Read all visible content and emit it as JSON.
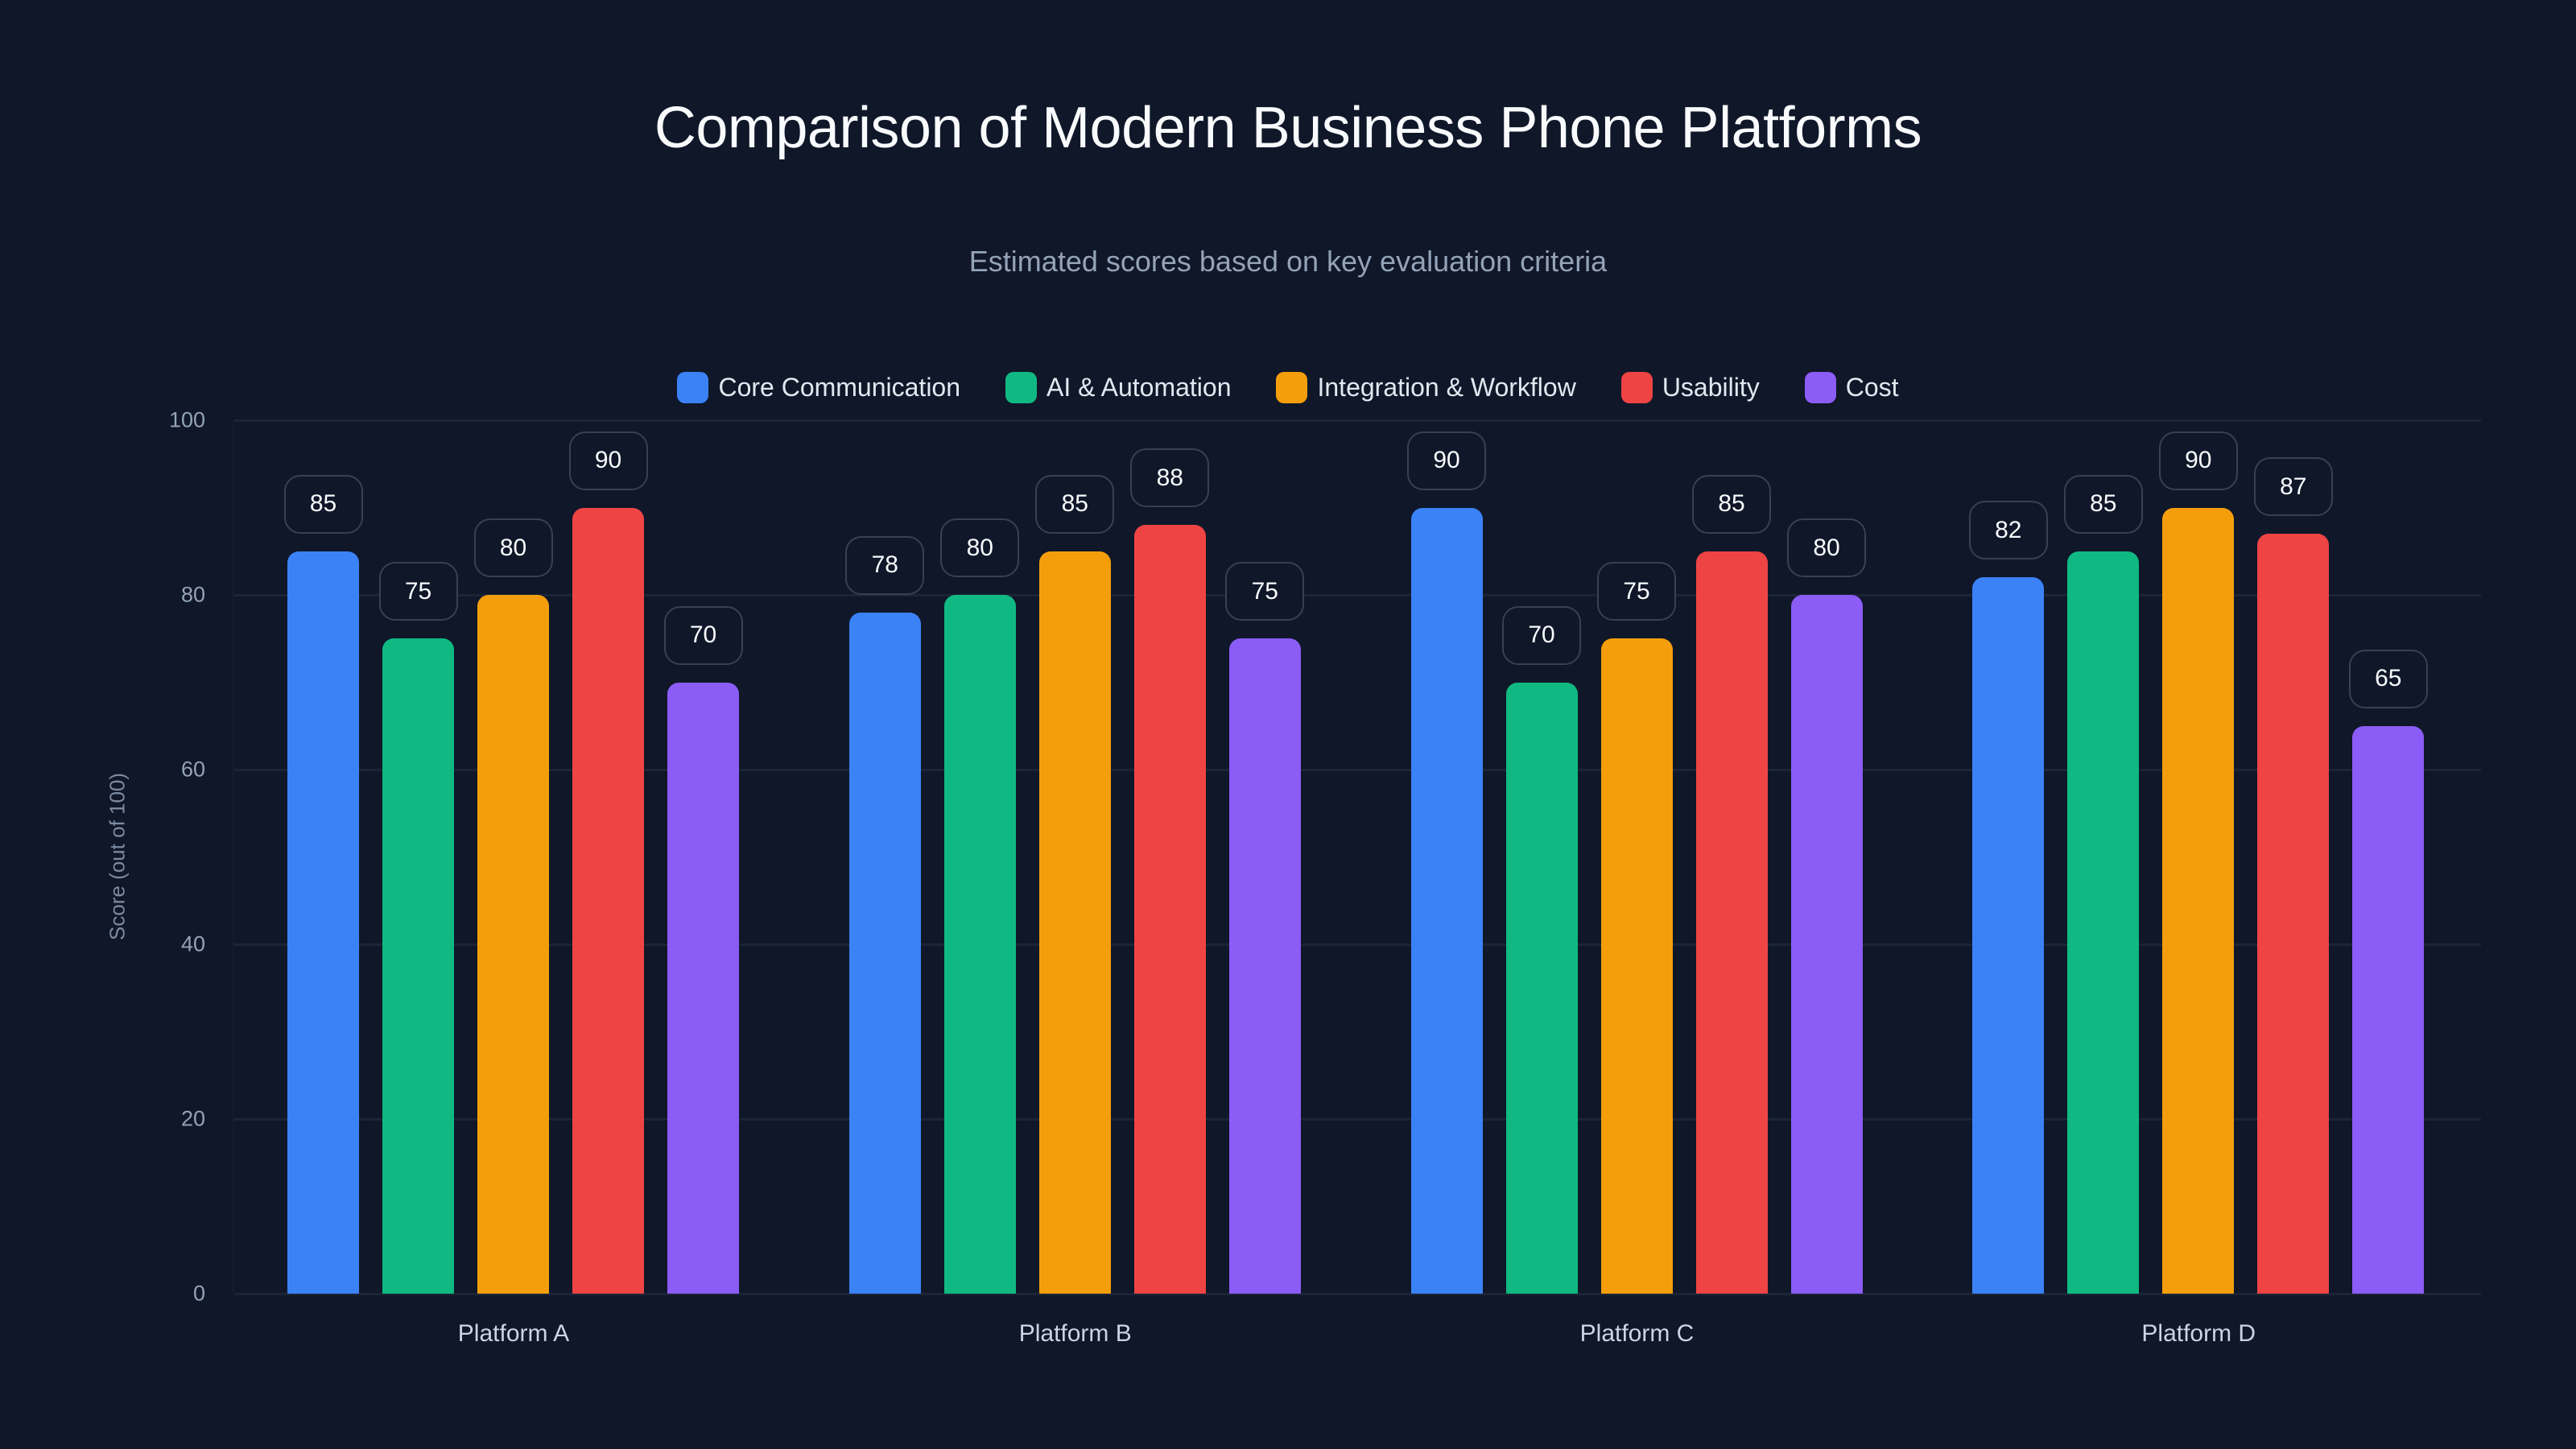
{
  "chart_data": {
    "type": "bar",
    "title": "Comparison of Modern Business Phone Platforms",
    "subtitle": "Estimated scores based on key evaluation criteria",
    "xlabel": "",
    "ylabel": "Score (out of 100)",
    "ylim": [
      0,
      100
    ],
    "yticks": [
      "0",
      "20",
      "40",
      "60",
      "80",
      "100"
    ],
    "grid": true,
    "legend_position": "top",
    "categories": [
      "Platform A",
      "Platform B",
      "Platform C",
      "Platform D"
    ],
    "series": [
      {
        "name": "Core Communication",
        "color": "#3b82f6",
        "values": [
          85,
          78,
          90,
          82
        ]
      },
      {
        "name": "AI & Automation",
        "color": "#10b981",
        "values": [
          75,
          80,
          70,
          85
        ]
      },
      {
        "name": "Integration & Workflow",
        "color": "#f59e0b",
        "values": [
          80,
          85,
          75,
          90
        ]
      },
      {
        "name": "Usability",
        "color": "#ef4444",
        "values": [
          90,
          88,
          85,
          87
        ]
      },
      {
        "name": "Cost",
        "color": "#8b5cf6",
        "values": [
          70,
          75,
          80,
          65
        ]
      }
    ]
  }
}
